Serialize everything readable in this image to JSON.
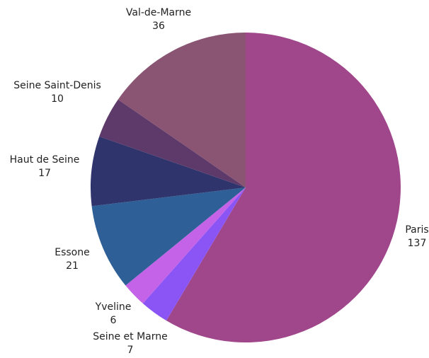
{
  "chart_data": {
    "type": "pie",
    "start_angle_deg": 0,
    "direction": "clockwise",
    "slices": [
      {
        "label": "Paris",
        "value": 137,
        "color": "#a0468a"
      },
      {
        "label": "Seine et Marne",
        "value": 7,
        "color": "#8b55f5"
      },
      {
        "label": "Yveline",
        "value": 6,
        "color": "#c463e8"
      },
      {
        "label": "Essone",
        "value": 21,
        "color": "#2e5f96"
      },
      {
        "label": "Haut de Seine",
        "value": 17,
        "color": "#2f346c"
      },
      {
        "label": "Seine Saint-Denis",
        "value": 10,
        "color": "#5e3a6a"
      },
      {
        "label": "Val-de-Marne",
        "value": 36,
        "color": "#8a5473"
      }
    ]
  }
}
